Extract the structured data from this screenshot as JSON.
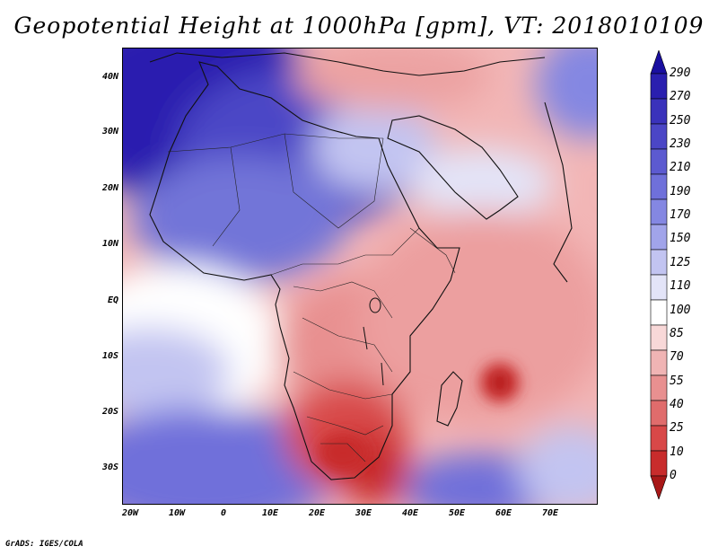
{
  "title": "Geopotential Height at 1000hPa [gpm], VT: 2018010109",
  "credit": "GrADS: IGES/COLA",
  "map": {
    "variable": "Geopotential Height",
    "level": "1000hPa",
    "units": "gpm",
    "valid_time": "2018010109",
    "lat_labels": [
      "40N",
      "30N",
      "20N",
      "10N",
      "EQ",
      "10S",
      "20S",
      "30S"
    ],
    "lon_labels": [
      "20W",
      "10W",
      "0",
      "10E",
      "20E",
      "30E",
      "40E",
      "50E",
      "60E",
      "70E"
    ]
  },
  "colorbar": {
    "levels": [
      "290",
      "270",
      "250",
      "230",
      "210",
      "190",
      "170",
      "150",
      "125",
      "110",
      "100",
      "85",
      "70",
      "55",
      "40",
      "25",
      "10",
      "0"
    ],
    "colors": [
      "#1a0fa0",
      "#2a1faf",
      "#3a32bb",
      "#4b46c6",
      "#5c5ad0",
      "#6f70da",
      "#8487e2",
      "#a1a4ea",
      "#c2c4f1",
      "#e3e4f8",
      "#ffffff",
      "#f8d8d8",
      "#f0b4b4",
      "#e89090",
      "#e06c6c",
      "#d84848",
      "#c82c2c",
      "#a81818"
    ]
  }
}
